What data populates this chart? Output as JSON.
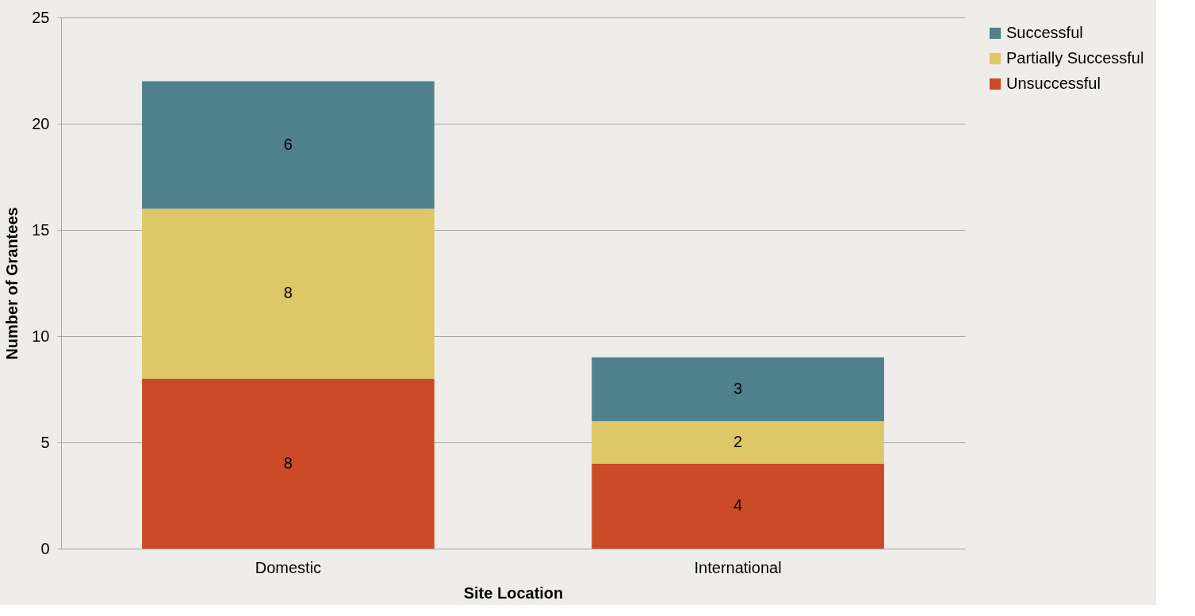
{
  "chart_data": {
    "type": "bar",
    "stacked": true,
    "xlabel": "Site Location",
    "ylabel": "Number of Grantees",
    "categories": [
      "Domestic",
      "International"
    ],
    "series": [
      {
        "name": "Unsuccessful",
        "color": "#cb4a27",
        "values": [
          8,
          4
        ]
      },
      {
        "name": "Partially Successful",
        "color": "#dec766",
        "values": [
          8,
          2
        ]
      },
      {
        "name": "Successful",
        "color": "#4e818b",
        "values": [
          6,
          3
        ]
      }
    ],
    "ylim": [
      0,
      25
    ],
    "yticks": [
      0,
      5,
      10,
      15,
      20,
      25
    ],
    "grid": "y",
    "legend": "right",
    "data_labels": true
  }
}
